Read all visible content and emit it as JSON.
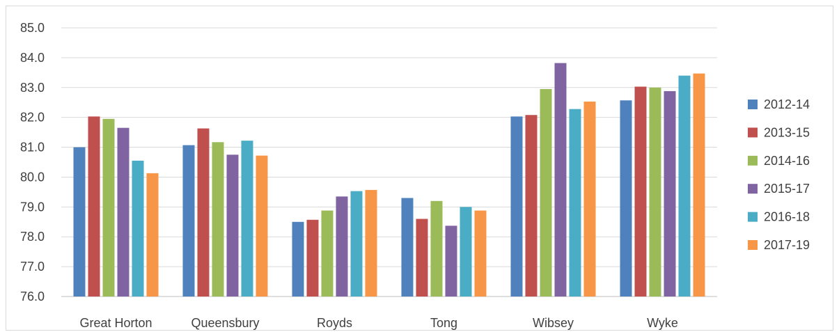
{
  "chart_data": {
    "type": "bar",
    "title": "",
    "xlabel": "",
    "ylabel": "",
    "ylim": [
      76.0,
      85.0
    ],
    "yticks": [
      "76.0",
      "77.0",
      "78.0",
      "79.0",
      "80.0",
      "81.0",
      "82.0",
      "83.0",
      "84.0",
      "85.0"
    ],
    "grid": true,
    "legend_position": "right",
    "categories": [
      "Great Horton",
      "Queensbury",
      "Royds",
      "Tong",
      "Wibsey",
      "Wyke"
    ],
    "series": [
      {
        "name": "2012-14",
        "color": "#4F81BD",
        "values": [
          81.0,
          81.07,
          78.5,
          79.3,
          82.03,
          82.57
        ]
      },
      {
        "name": "2013-15",
        "color": "#C0504D",
        "values": [
          82.03,
          81.63,
          78.57,
          78.6,
          82.08,
          83.03
        ]
      },
      {
        "name": "2014-16",
        "color": "#9BBB59",
        "values": [
          81.95,
          81.17,
          78.88,
          79.2,
          82.95,
          83.0
        ]
      },
      {
        "name": "2015-17",
        "color": "#8064A2",
        "values": [
          81.65,
          80.75,
          79.35,
          78.37,
          83.82,
          82.88
        ]
      },
      {
        "name": "2016-18",
        "color": "#4BACC6",
        "values": [
          80.55,
          81.22,
          79.53,
          79.0,
          82.28,
          83.4
        ]
      },
      {
        "name": "2017-19",
        "color": "#F79646",
        "values": [
          80.13,
          80.72,
          79.57,
          78.88,
          82.53,
          83.47
        ]
      }
    ]
  }
}
